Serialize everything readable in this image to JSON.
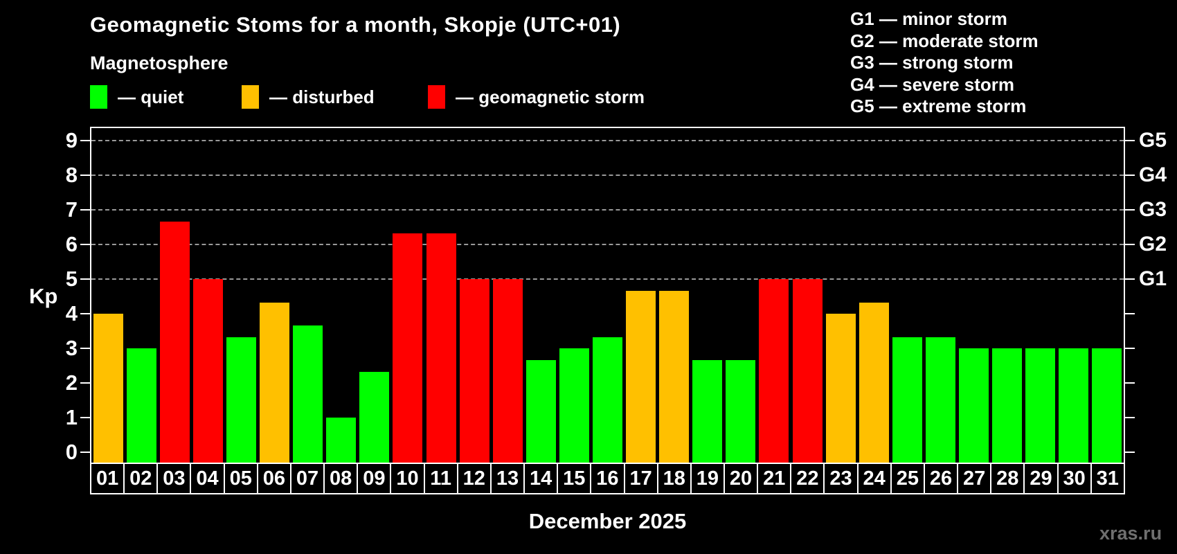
{
  "title": "Geomagnetic Stoms for a month, Skopje (UTC+01)",
  "subtitle": "Magnetosphere",
  "legend": {
    "items": [
      {
        "key": "quiet",
        "label": "— quiet",
        "color": "#00ff00"
      },
      {
        "key": "disturbed",
        "label": "— disturbed",
        "color": "#ffc000"
      },
      {
        "key": "storm",
        "label": "— geomagnetic storm",
        "color": "#ff0000"
      }
    ]
  },
  "g_scale_legend": [
    "G1 — minor storm",
    "G2 — moderate storm",
    "G3 — strong storm",
    "G4 — severe storm",
    "G5 — extreme storm"
  ],
  "watermark": "xras.ru",
  "chart_data": {
    "type": "bar",
    "title": "Geomagnetic Stoms for a month, Skopje (UTC+01)",
    "subtitle": "Magnetosphere",
    "xlabel": "December 2025",
    "ylabel": "Kp",
    "ylim": [
      0,
      9
    ],
    "grid": "horizontal dashed lines at Kp 5-9 only",
    "legend_position": "top-left",
    "yticks_left": [
      0,
      1,
      2,
      3,
      4,
      5,
      6,
      7,
      8,
      9
    ],
    "yticks_right": [
      {
        "kp": 5,
        "label": "G1"
      },
      {
        "kp": 6,
        "label": "G2"
      },
      {
        "kp": 7,
        "label": "G3"
      },
      {
        "kp": 8,
        "label": "G4"
      },
      {
        "kp": 9,
        "label": "G5"
      }
    ],
    "gridlines_at": [
      5,
      6,
      7,
      8,
      9
    ],
    "colors": {
      "quiet": "#00ff00",
      "disturbed": "#ffc000",
      "storm": "#ff0000"
    },
    "categories": [
      "01",
      "02",
      "03",
      "04",
      "05",
      "06",
      "07",
      "08",
      "09",
      "10",
      "11",
      "12",
      "13",
      "14",
      "15",
      "16",
      "17",
      "18",
      "19",
      "20",
      "21",
      "22",
      "23",
      "24",
      "25",
      "26",
      "27",
      "28",
      "29",
      "30",
      "31"
    ],
    "values": [
      4,
      3,
      6.67,
      5,
      3.33,
      4.33,
      3.67,
      1,
      2.33,
      6.33,
      6.33,
      5,
      5,
      2.67,
      3,
      3.33,
      4.67,
      4.67,
      2.67,
      2.67,
      5,
      5,
      4,
      4.33,
      3.33,
      3.33,
      3,
      3,
      3,
      3,
      3
    ],
    "statuses": [
      "disturbed",
      "quiet",
      "storm",
      "storm",
      "quiet",
      "disturbed",
      "quiet",
      "quiet",
      "quiet",
      "storm",
      "storm",
      "storm",
      "storm",
      "quiet",
      "quiet",
      "quiet",
      "disturbed",
      "disturbed",
      "quiet",
      "quiet",
      "storm",
      "storm",
      "disturbed",
      "disturbed",
      "quiet",
      "quiet",
      "quiet",
      "quiet",
      "quiet",
      "quiet",
      "quiet"
    ]
  }
}
